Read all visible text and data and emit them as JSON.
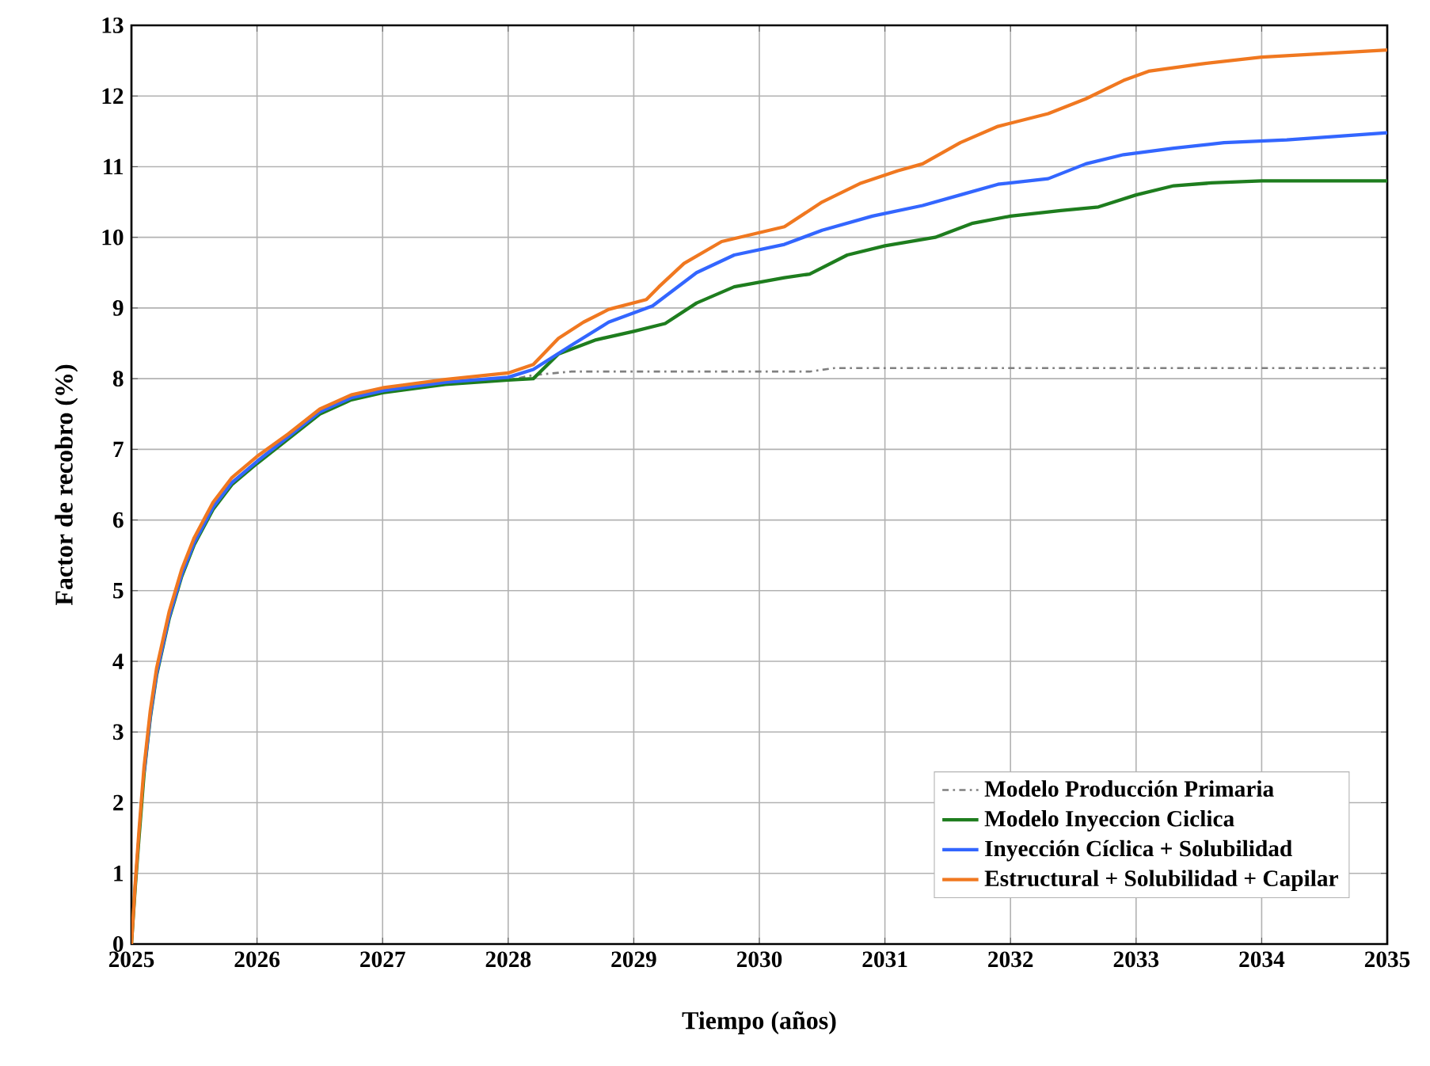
{
  "chart_data": {
    "type": "line",
    "xlabel": "Tiempo (años)",
    "ylabel": "Factor de recobro (%)",
    "xlim": [
      2025,
      2035
    ],
    "xticks": [
      2025,
      2026,
      2027,
      2028,
      2029,
      2030,
      2031,
      2032,
      2033,
      2034,
      2035
    ],
    "ylim": [
      0,
      13
    ],
    "yticks": [
      0,
      1,
      2,
      3,
      4,
      5,
      6,
      7,
      8,
      9,
      10,
      11,
      12,
      13
    ],
    "grid": true,
    "legend": "bottom right",
    "series": [
      {
        "name": "Modelo Producción Primaria",
        "color": "#808080",
        "line_style": "dashdot",
        "x": [
          2025,
          2025.03,
          2025.06,
          2025.1,
          2025.15,
          2025.2,
          2025.3,
          2025.4,
          2025.5,
          2025.65,
          2025.8,
          2026,
          2026.25,
          2026.5,
          2026.75,
          2027,
          2027.5,
          2028,
          2028.2,
          2028.5,
          2029,
          2029.5,
          2030,
          2030.4,
          2030.6,
          2031,
          2032,
          2033,
          2034,
          2035
        ],
        "values": [
          0,
          0.8,
          1.5,
          2.4,
          3.2,
          3.8,
          4.6,
          5.2,
          5.65,
          6.15,
          6.5,
          6.8,
          7.15,
          7.5,
          7.7,
          7.8,
          7.92,
          7.98,
          8.05,
          8.1,
          8.1,
          8.1,
          8.1,
          8.1,
          8.15,
          8.15,
          8.15,
          8.15,
          8.15,
          8.15
        ]
      },
      {
        "name": "Modelo Inyeccion Ciclica",
        "color": "#1e7d1e",
        "x": [
          2025,
          2025.03,
          2025.06,
          2025.1,
          2025.15,
          2025.2,
          2025.3,
          2025.4,
          2025.5,
          2025.65,
          2025.8,
          2026,
          2026.25,
          2026.5,
          2026.75,
          2027,
          2027.5,
          2028,
          2028.2,
          2028.4,
          2028.7,
          2029,
          2029.25,
          2029.5,
          2029.8,
          2030.2,
          2030.4,
          2030.7,
          2031,
          2031.4,
          2031.7,
          2032,
          2032.4,
          2032.7,
          2033,
          2033.3,
          2033.6,
          2034,
          2035
        ],
        "values": [
          0,
          0.8,
          1.5,
          2.4,
          3.2,
          3.8,
          4.6,
          5.2,
          5.65,
          6.15,
          6.5,
          6.8,
          7.15,
          7.5,
          7.7,
          7.8,
          7.92,
          7.98,
          8.0,
          8.35,
          8.55,
          8.67,
          8.78,
          9.07,
          9.3,
          9.43,
          9.48,
          9.75,
          9.88,
          10.0,
          10.2,
          10.3,
          10.38,
          10.43,
          10.6,
          10.73,
          10.77,
          10.8,
          10.8
        ]
      },
      {
        "name": "Inyección Cíclica + Solubilidad",
        "color": "#3366ff",
        "x": [
          2025.1,
          2025.15,
          2025.2,
          2025.3,
          2025.4,
          2025.5,
          2025.65,
          2025.8,
          2026,
          2026.25,
          2026.5,
          2026.75,
          2027,
          2027.5,
          2028,
          2028.2,
          2028.5,
          2028.8,
          2029.15,
          2029.5,
          2029.8,
          2030.2,
          2030.5,
          2030.9,
          2031.3,
          2031.6,
          2031.9,
          2032.3,
          2032.6,
          2032.9,
          2033.3,
          2033.7,
          2034.2,
          2035
        ],
        "values": [
          2.43,
          3.23,
          3.83,
          4.63,
          5.23,
          5.68,
          6.18,
          6.53,
          6.83,
          7.18,
          7.53,
          7.73,
          7.83,
          7.95,
          8.02,
          8.13,
          8.47,
          8.8,
          9.03,
          9.5,
          9.75,
          9.9,
          10.1,
          10.3,
          10.45,
          10.6,
          10.75,
          10.83,
          11.04,
          11.17,
          11.26,
          11.34,
          11.38,
          11.48
        ]
      },
      {
        "name": "Estructural + Solubilidad + Capilar",
        "color": "#f07820",
        "x": [
          2025,
          2025.03,
          2025.06,
          2025.1,
          2025.15,
          2025.2,
          2025.3,
          2025.4,
          2025.5,
          2025.65,
          2025.8,
          2026,
          2026.25,
          2026.5,
          2026.75,
          2027,
          2027.5,
          2028,
          2028.2,
          2028.4,
          2028.6,
          2028.8,
          2029.1,
          2029.2,
          2029.4,
          2029.7,
          2030.2,
          2030.5,
          2030.8,
          2031.1,
          2031.3,
          2031.6,
          2031.9,
          2032.3,
          2032.6,
          2032.9,
          2033.1,
          2033.5,
          2034,
          2034.5,
          2035
        ],
        "values": [
          0,
          0.85,
          1.6,
          2.5,
          3.3,
          3.9,
          4.7,
          5.3,
          5.75,
          6.25,
          6.6,
          6.9,
          7.22,
          7.57,
          7.77,
          7.87,
          7.99,
          8.08,
          8.2,
          8.57,
          8.8,
          8.98,
          9.12,
          9.3,
          9.63,
          9.94,
          10.15,
          10.5,
          10.76,
          10.94,
          11.04,
          11.34,
          11.57,
          11.75,
          11.96,
          12.22,
          12.35,
          12.45,
          12.55,
          12.6,
          12.65
        ]
      }
    ]
  }
}
